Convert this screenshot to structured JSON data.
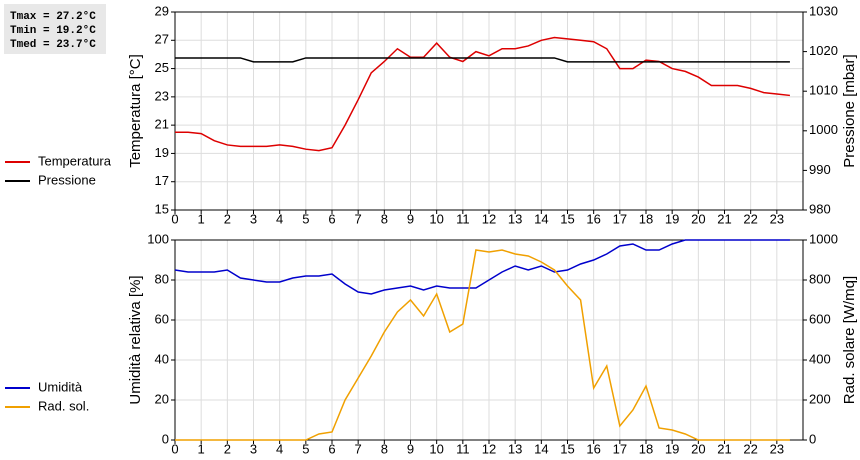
{
  "stats": [
    "Tmax = 27.2°C",
    "Tmin = 19.2°C",
    "Tmed = 23.7°C"
  ],
  "chart_data": [
    {
      "type": "line",
      "ylabel": "Temperatura [°C]",
      "y2label": "Pressione [mbar]",
      "x": [
        0,
        0.5,
        1,
        1.5,
        2,
        2.5,
        3,
        3.5,
        4,
        4.5,
        5,
        5.5,
        6,
        6.5,
        7,
        7.5,
        8,
        8.5,
        9,
        9.5,
        10,
        10.5,
        11,
        11.5,
        12,
        12.5,
        13,
        13.5,
        14,
        14.5,
        15,
        15.5,
        16,
        16.5,
        17,
        17.5,
        18,
        18.5,
        19,
        19.5,
        20,
        20.5,
        21,
        21.5,
        22,
        22.5,
        23,
        23.5
      ],
      "xlim": [
        0,
        24
      ],
      "xticks": [
        0,
        1,
        2,
        3,
        4,
        5,
        6,
        7,
        8,
        9,
        10,
        11,
        12,
        13,
        14,
        15,
        16,
        17,
        18,
        19,
        20,
        21,
        22,
        23
      ],
      "ylim": [
        15,
        29
      ],
      "yticks": [
        15,
        17,
        19,
        21,
        23,
        25,
        27,
        29
      ],
      "y2lim": [
        980,
        1030
      ],
      "y2ticks": [
        980,
        990,
        1000,
        1010,
        1020,
        1030
      ],
      "grid": true,
      "series": [
        {
          "name": "Temperatura",
          "color": "#dd0000",
          "values": [
            20.5,
            20.5,
            20.4,
            19.9,
            19.6,
            19.5,
            19.5,
            19.5,
            19.6,
            19.5,
            19.3,
            19.2,
            19.4,
            21.0,
            22.8,
            24.7,
            25.5,
            26.4,
            25.8,
            25.8,
            26.8,
            25.8,
            25.5,
            26.2,
            25.9,
            26.4,
            26.4,
            26.6,
            27.0,
            27.2,
            27.1,
            27.0,
            26.9,
            26.4,
            25.0,
            25.0,
            25.6,
            25.5,
            25.0,
            24.8,
            24.4,
            23.8,
            23.8,
            23.8,
            23.6,
            23.3,
            23.2,
            23.1
          ]
        },
        {
          "name": "Pressione",
          "color": "#000000",
          "axis": "y2",
          "values": [
            1018.4,
            1018.4,
            1018.4,
            1018.4,
            1018.4,
            1018.4,
            1017.4,
            1017.4,
            1017.4,
            1017.4,
            1018.4,
            1018.4,
            1018.4,
            1018.4,
            1018.4,
            1018.4,
            1018.4,
            1018.4,
            1018.4,
            1018.4,
            1018.4,
            1018.4,
            1018.4,
            1018.4,
            1018.4,
            1018.4,
            1018.4,
            1018.4,
            1018.4,
            1018.4,
            1017.4,
            1017.4,
            1017.4,
            1017.4,
            1017.4,
            1017.4,
            1017.4,
            1017.4,
            1017.4,
            1017.4,
            1017.4,
            1017.4,
            1017.4,
            1017.4,
            1017.4,
            1017.4,
            1017.4,
            1017.4
          ]
        }
      ]
    },
    {
      "type": "line",
      "ylabel": "Umidità relativa [%]",
      "y2label": "Rad. solare [W/mq]",
      "x": [
        0,
        0.5,
        1,
        1.5,
        2,
        2.5,
        3,
        3.5,
        4,
        4.5,
        5,
        5.5,
        6,
        6.5,
        7,
        7.5,
        8,
        8.5,
        9,
        9.5,
        10,
        10.5,
        11,
        11.5,
        12,
        12.5,
        13,
        13.5,
        14,
        14.5,
        15,
        15.5,
        16,
        16.5,
        17,
        17.5,
        18,
        18.5,
        19,
        19.5,
        20,
        20.5,
        21,
        21.5,
        22,
        22.5,
        23,
        23.5
      ],
      "xlim": [
        0,
        24
      ],
      "xticks": [
        0,
        1,
        2,
        3,
        4,
        5,
        6,
        7,
        8,
        9,
        10,
        11,
        12,
        13,
        14,
        15,
        16,
        17,
        18,
        19,
        20,
        21,
        22,
        23
      ],
      "ylim": [
        0,
        100
      ],
      "yticks": [
        0,
        20,
        40,
        60,
        80,
        100
      ],
      "y2lim": [
        0,
        1000
      ],
      "y2ticks": [
        0,
        200,
        400,
        600,
        800,
        1000
      ],
      "grid": true,
      "series": [
        {
          "name": "Umidità",
          "color": "#0000cc",
          "values": [
            85,
            84,
            84,
            84,
            85,
            81,
            80,
            79,
            79,
            81,
            82,
            82,
            83,
            78,
            74,
            73,
            75,
            76,
            77,
            75,
            77,
            76,
            76,
            76,
            80,
            84,
            87,
            85,
            87,
            84,
            85,
            88,
            90,
            93,
            97,
            98,
            95,
            95,
            98,
            100,
            100,
            100,
            100,
            100,
            100,
            100,
            100,
            100
          ]
        },
        {
          "name": "Rad. sol.",
          "color": "#f0a000",
          "axis": "y2",
          "values": [
            0,
            0,
            0,
            0,
            0,
            0,
            0,
            0,
            0,
            0,
            0,
            30,
            40,
            200,
            310,
            420,
            540,
            640,
            700,
            620,
            730,
            540,
            580,
            950,
            940,
            950,
            930,
            920,
            890,
            850,
            770,
            700,
            260,
            370,
            70,
            150,
            270,
            60,
            50,
            30,
            0,
            0,
            0,
            0,
            0,
            0,
            0,
            0
          ]
        }
      ]
    }
  ]
}
